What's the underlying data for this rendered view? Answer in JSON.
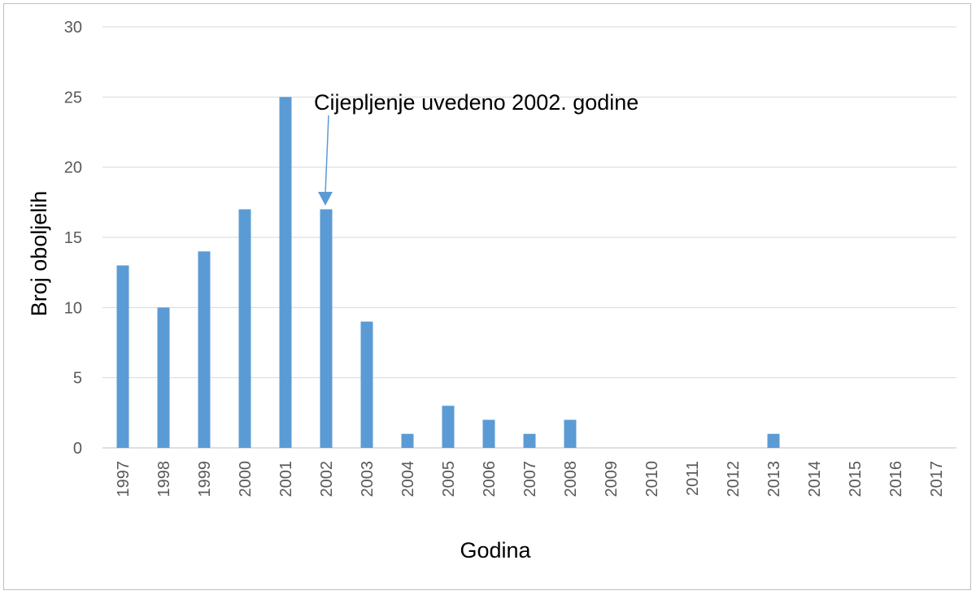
{
  "chart_data": {
    "type": "bar",
    "xlabel": "Godina",
    "ylabel": "Broj oboljelih",
    "ylim": [
      0,
      30
    ],
    "yticks": [
      0,
      5,
      10,
      15,
      20,
      25,
      30
    ],
    "grid": true,
    "legend": "none",
    "bar_color": "#5b9bd5",
    "categories": [
      "1997",
      "1998",
      "1999",
      "2000",
      "2001",
      "2002",
      "2003",
      "2004",
      "2005",
      "2006",
      "2007",
      "2008",
      "2009",
      "2010",
      "2011",
      "2012",
      "2013",
      "2014",
      "2015",
      "2016",
      "2017"
    ],
    "values": [
      13,
      10,
      14,
      17,
      25,
      17,
      9,
      1,
      3,
      2,
      1,
      2,
      0,
      0,
      0,
      0,
      1,
      0,
      0,
      0,
      0
    ],
    "annotation": {
      "text": "Cijepljenje uvedeno 2002. godine",
      "target_category": "2002",
      "arrow_color": "#5b9bd5"
    }
  }
}
